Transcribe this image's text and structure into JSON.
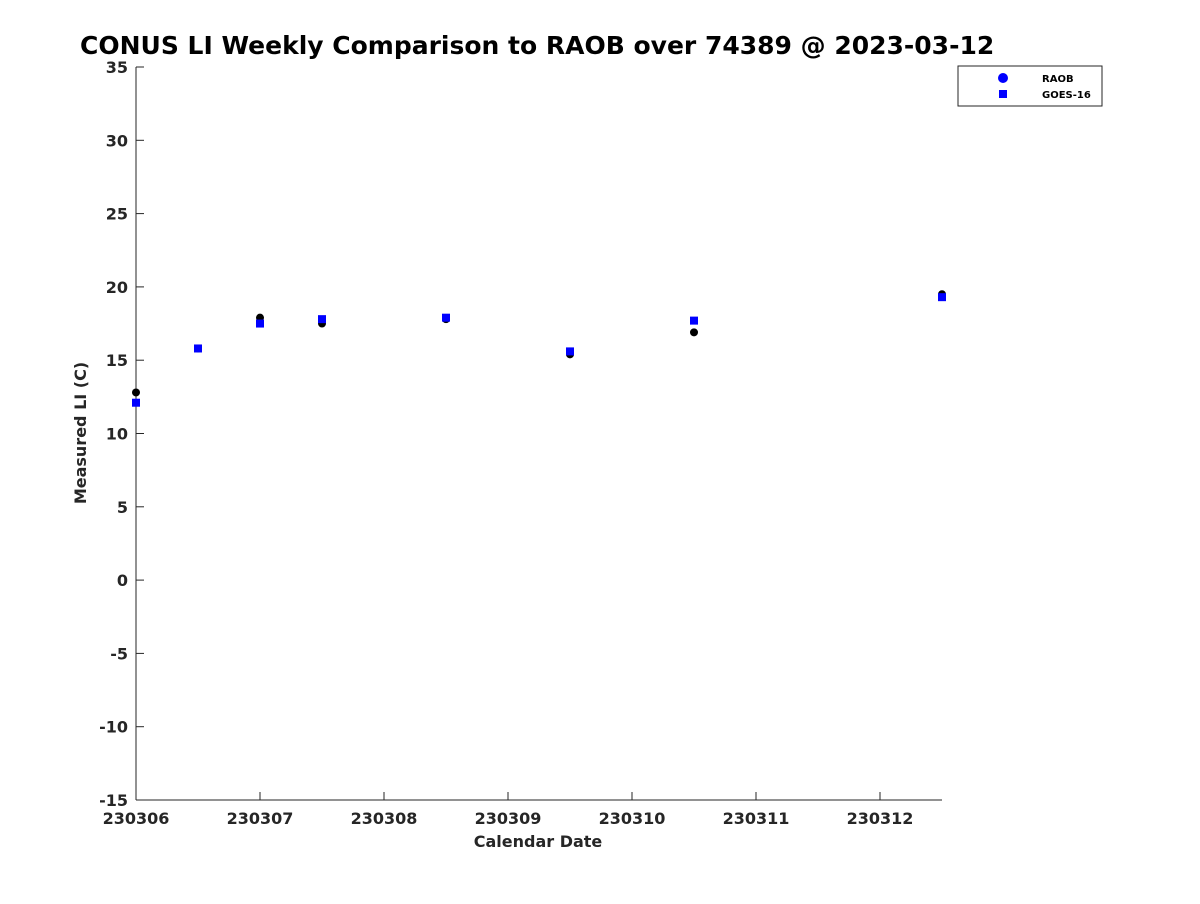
{
  "chart_data": {
    "type": "scatter",
    "title": "CONUS LI Weekly Comparison to RAOB over 74389 @ 2023-03-12",
    "xlabel": "Calendar Date",
    "ylabel": "Measured LI (C)",
    "xlim": [
      230306,
      230312.5
    ],
    "ylim": [
      -15,
      35
    ],
    "xticks": [
      230306,
      230307,
      230308,
      230309,
      230310,
      230311,
      230312
    ],
    "xtick_labels": [
      "230306",
      "230307",
      "230308",
      "230309",
      "230310",
      "230311",
      "230312"
    ],
    "yticks": [
      -15,
      -10,
      -5,
      0,
      5,
      10,
      15,
      20,
      25,
      30,
      35
    ],
    "ytick_labels": [
      "-15",
      "-10",
      "-5",
      "0",
      "5",
      "10",
      "15",
      "20",
      "25",
      "30",
      "35"
    ],
    "grid": false,
    "legend_position": "top-right",
    "series": [
      {
        "name": "RAOB",
        "marker": "circle",
        "color": "#0000ff",
        "x": [
          230306,
          230306.5,
          230307,
          230307.5,
          230308.5,
          230309.5,
          230310.5,
          230312.5
        ],
        "y": [
          12.8,
          15.8,
          17.9,
          17.5,
          17.8,
          15.4,
          16.9,
          19.5
        ]
      },
      {
        "name": "GOES-16",
        "marker": "square",
        "color": "#0000ff",
        "x": [
          230306,
          230306.5,
          230307,
          230307.5,
          230308.5,
          230309.5,
          230310.5,
          230312.5
        ],
        "y": [
          12.1,
          15.8,
          17.5,
          17.8,
          17.9,
          15.6,
          17.7,
          19.3
        ]
      }
    ],
    "raob_point_fill": "#000000"
  }
}
